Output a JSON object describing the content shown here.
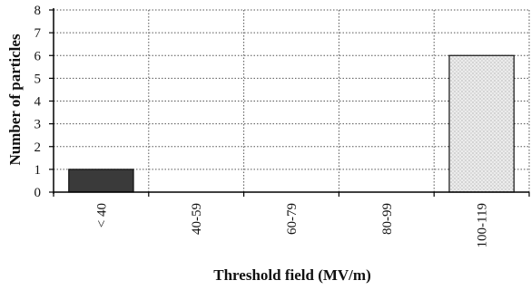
{
  "chart_data": {
    "type": "bar",
    "title": "",
    "xlabel": "Threshold field (MV/m)",
    "ylabel": "Number of particles",
    "categories": [
      "< 40",
      "40-59",
      "60-79",
      "80-99",
      "100-119"
    ],
    "values": [
      1,
      0,
      0,
      0,
      6
    ],
    "ylim": [
      0,
      8
    ],
    "yticks": [
      "0",
      "1",
      "2",
      "3",
      "4",
      "5",
      "6",
      "7",
      "8"
    ],
    "grid": "horizontal dotted and vertical dotted lines",
    "legend": "none",
    "bar_colors": [
      "#3a3a3a",
      "#ffffff",
      "#ffffff",
      "#ffffff",
      "#e6e6e6"
    ]
  }
}
